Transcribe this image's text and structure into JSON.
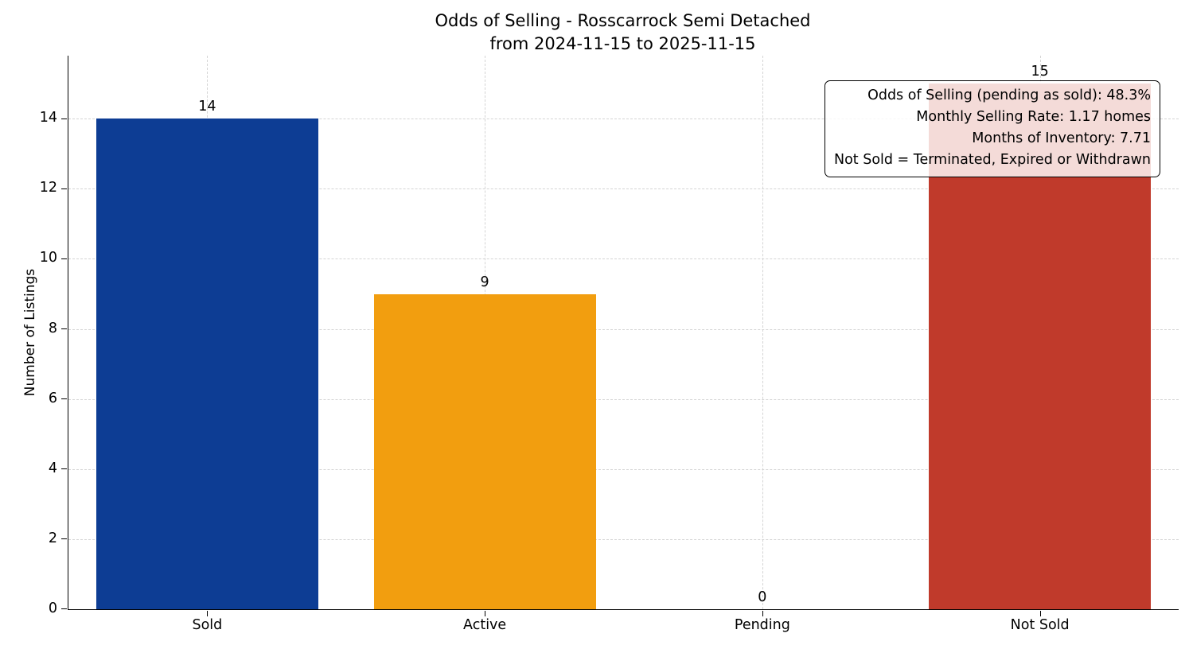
{
  "chart_data": {
    "type": "bar",
    "title_lines": [
      "Odds of Selling - Rosscarrock Semi Detached",
      "from 2024-11-15 to 2025-11-15"
    ],
    "ylabel": "Number of Listings",
    "xlabel": "",
    "categories": [
      "Sold",
      "Active",
      "Pending",
      "Not Sold"
    ],
    "values": [
      14,
      9,
      0,
      15
    ],
    "bar_colors": [
      "#0d3d94",
      "#f29e0f",
      "#0d3d94",
      "#c03a2b"
    ],
    "yticks": [
      0,
      2,
      4,
      6,
      8,
      10,
      12,
      14
    ],
    "ylim": [
      0,
      15.8
    ],
    "grid": "dashed",
    "annotation": {
      "lines": [
        "Odds of Selling (pending as sold): 48.3%",
        "Monthly Selling Rate: 1.17 homes",
        "Months of Inventory: 7.71",
        "Not Sold = Terminated, Expired or Withdrawn"
      ]
    }
  }
}
